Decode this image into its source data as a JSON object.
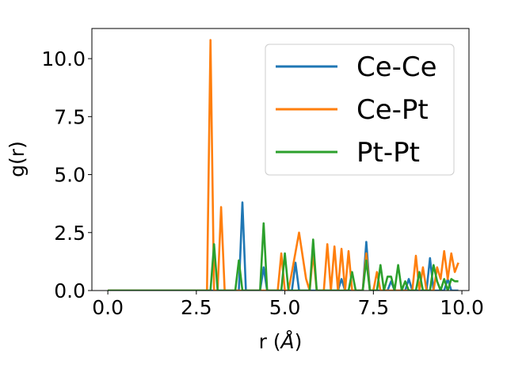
{
  "chart_data": {
    "type": "line",
    "title": "",
    "xlabel_main": "r (",
    "xlabel_unit": "Å",
    "xlabel_close": ")",
    "ylabel": "g(r)",
    "xlim": [
      -0.45,
      10.2
    ],
    "ylim": [
      0,
      11.3
    ],
    "x_ticks": [
      0.0,
      2.5,
      5.0,
      7.5,
      10.0
    ],
    "x_tick_labels": [
      "0.0",
      "2.5",
      "5.0",
      "7.5",
      "10.0"
    ],
    "y_ticks": [
      0.0,
      2.5,
      5.0,
      7.5,
      10.0
    ],
    "y_tick_labels": [
      "0.0",
      "2.5",
      "5.0",
      "7.5",
      "10.0"
    ],
    "grid": false,
    "legend_position": "top-right",
    "series": [
      {
        "name": "Ce-Ce",
        "color": "#1f77b4",
        "points": [
          [
            0,
            0
          ],
          [
            2.8,
            0
          ],
          [
            3.7,
            0
          ],
          [
            3.8,
            3.8
          ],
          [
            3.9,
            0
          ],
          [
            4.3,
            0
          ],
          [
            4.4,
            1.0
          ],
          [
            4.5,
            0
          ],
          [
            5.2,
            0
          ],
          [
            5.3,
            1.2
          ],
          [
            5.4,
            0
          ],
          [
            6.5,
            0
          ],
          [
            6.6,
            0.5
          ],
          [
            6.7,
            0
          ],
          [
            7.2,
            0
          ],
          [
            7.3,
            2.1
          ],
          [
            7.4,
            0
          ],
          [
            7.9,
            0
          ],
          [
            8.0,
            0.4
          ],
          [
            8.1,
            0
          ],
          [
            8.4,
            0
          ],
          [
            8.5,
            0.5
          ],
          [
            8.6,
            0
          ],
          [
            9.0,
            0
          ],
          [
            9.1,
            1.4
          ],
          [
            9.2,
            0
          ],
          [
            9.5,
            0
          ],
          [
            9.6,
            0.5
          ],
          [
            9.7,
            0
          ],
          [
            9.9,
            0
          ]
        ]
      },
      {
        "name": "Ce-Pt",
        "color": "#ff7f0e",
        "points": [
          [
            0,
            0
          ],
          [
            2.8,
            0
          ],
          [
            2.9,
            10.8
          ],
          [
            3.0,
            0
          ],
          [
            3.1,
            0
          ],
          [
            3.2,
            3.6
          ],
          [
            3.3,
            0
          ],
          [
            4.8,
            0
          ],
          [
            4.9,
            1.6
          ],
          [
            5.0,
            0
          ],
          [
            5.1,
            0
          ],
          [
            5.2,
            0.8
          ],
          [
            5.4,
            2.5
          ],
          [
            5.6,
            0.5
          ],
          [
            5.7,
            0
          ],
          [
            5.8,
            1.6
          ],
          [
            5.9,
            0
          ],
          [
            6.1,
            0
          ],
          [
            6.2,
            2.0
          ],
          [
            6.3,
            0
          ],
          [
            6.4,
            1.9
          ],
          [
            6.5,
            0
          ],
          [
            6.6,
            1.8
          ],
          [
            6.7,
            0
          ],
          [
            6.8,
            1.7
          ],
          [
            6.9,
            0
          ],
          [
            7.2,
            0
          ],
          [
            7.3,
            1.6
          ],
          [
            7.4,
            0
          ],
          [
            7.5,
            0
          ],
          [
            7.6,
            0.8
          ],
          [
            7.7,
            0
          ],
          [
            8.6,
            0
          ],
          [
            8.7,
            1.5
          ],
          [
            8.8,
            0
          ],
          [
            8.9,
            1.0
          ],
          [
            9.0,
            0
          ],
          [
            9.2,
            0
          ],
          [
            9.3,
            1.0
          ],
          [
            9.4,
            0.5
          ],
          [
            9.5,
            1.7
          ],
          [
            9.6,
            0.5
          ],
          [
            9.7,
            1.6
          ],
          [
            9.8,
            0.8
          ],
          [
            9.9,
            1.2
          ]
        ]
      },
      {
        "name": "Pt-Pt",
        "color": "#2ca02c",
        "points": [
          [
            0,
            0
          ],
          [
            2.9,
            0
          ],
          [
            3.0,
            2.0
          ],
          [
            3.1,
            0
          ],
          [
            3.6,
            0
          ],
          [
            3.7,
            1.3
          ],
          [
            3.8,
            0
          ],
          [
            4.3,
            0
          ],
          [
            4.4,
            2.9
          ],
          [
            4.5,
            0
          ],
          [
            4.9,
            0
          ],
          [
            5.0,
            1.6
          ],
          [
            5.1,
            0
          ],
          [
            5.7,
            0
          ],
          [
            5.8,
            2.2
          ],
          [
            5.9,
            0
          ],
          [
            6.8,
            0
          ],
          [
            6.9,
            0.8
          ],
          [
            7.0,
            0
          ],
          [
            7.2,
            0
          ],
          [
            7.3,
            1.3
          ],
          [
            7.4,
            0
          ],
          [
            7.6,
            0
          ],
          [
            7.7,
            1.1
          ],
          [
            7.8,
            0
          ],
          [
            7.9,
            0.6
          ],
          [
            8.0,
            0.6
          ],
          [
            8.1,
            0
          ],
          [
            8.2,
            1.1
          ],
          [
            8.3,
            0
          ],
          [
            8.4,
            0.4
          ],
          [
            8.5,
            0
          ],
          [
            8.7,
            0
          ],
          [
            8.8,
            0.8
          ],
          [
            8.9,
            0
          ],
          [
            9.1,
            0
          ],
          [
            9.2,
            1.1
          ],
          [
            9.3,
            0.4
          ],
          [
            9.4,
            0
          ],
          [
            9.5,
            0.5
          ],
          [
            9.6,
            0
          ],
          [
            9.7,
            0.5
          ],
          [
            9.8,
            0.4
          ],
          [
            9.9,
            0.4
          ]
        ]
      }
    ]
  }
}
